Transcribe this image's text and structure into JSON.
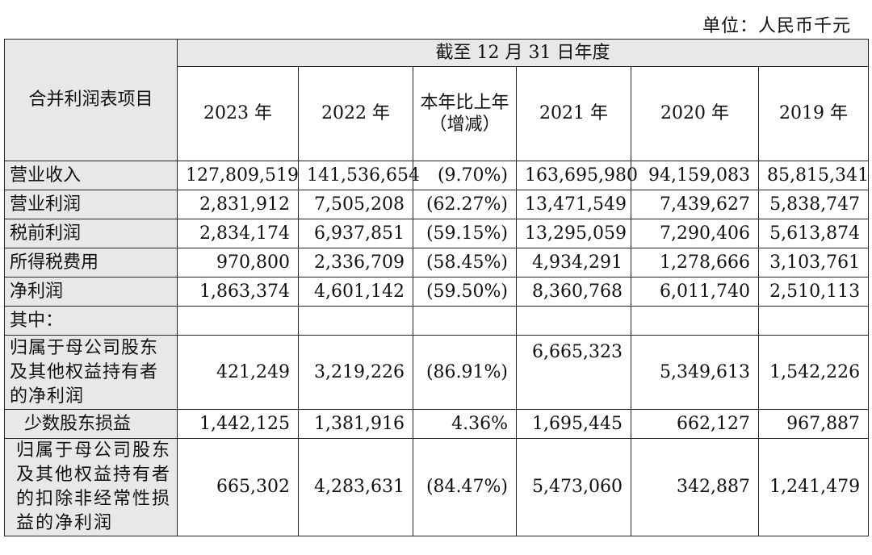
{
  "unit_label": "单位：人民币千元",
  "header": {
    "item_label": "合并利润表项目",
    "period_label": "截至 12 月 31 日年度",
    "columns": [
      "2023 年",
      "2022 年",
      "本年比上年（增减）",
      "2021 年",
      "2020 年",
      "2019 年"
    ]
  },
  "rows": [
    {
      "label": "营业收入",
      "values": [
        "127,809,519",
        "141,536,654",
        "(9.70%)",
        "163,695,980",
        "94,159,083",
        "85,815,341"
      ]
    },
    {
      "label": "营业利润",
      "values": [
        "2,831,912",
        "7,505,208",
        "(62.27%)",
        "13,471,549",
        "7,439,627",
        "5,838,747"
      ]
    },
    {
      "label": "税前利润",
      "values": [
        "2,834,174",
        "6,937,851",
        "(59.15%)",
        "13,295,059",
        "7,290,406",
        "5,613,874"
      ]
    },
    {
      "label": "所得税费用",
      "values": [
        "970,800",
        "2,336,709",
        "(58.45%)",
        "4,934,291",
        "1,278,666",
        "3,103,761"
      ]
    },
    {
      "label": "净利润",
      "values": [
        "1,863,374",
        "4,601,142",
        "(59.50%)",
        "8,360,768",
        "6,011,740",
        "2,510,113"
      ]
    },
    {
      "label": "其中：",
      "values": [
        "",
        "",
        "",
        "",
        "",
        ""
      ]
    },
    {
      "label": "归属于母公司股东及其他权益持有者的净利润",
      "values": [
        "421,249",
        "3,219,226",
        "(86.91%)",
        "6,665,323",
        "5,349,613",
        "1,542,226"
      ]
    },
    {
      "label": "少数股东损益",
      "values": [
        "1,442,125",
        "1,381,916",
        "4.36%",
        "1,695,445",
        "662,127",
        "967,887"
      ]
    },
    {
      "label": "归属于母公司股东及其他权益持有者的扣除非经常性损益的净利润",
      "values": [
        "665,302",
        "4,283,631",
        "(84.47%)",
        "5,473,060",
        "342,887",
        "1,241,479"
      ]
    }
  ]
}
